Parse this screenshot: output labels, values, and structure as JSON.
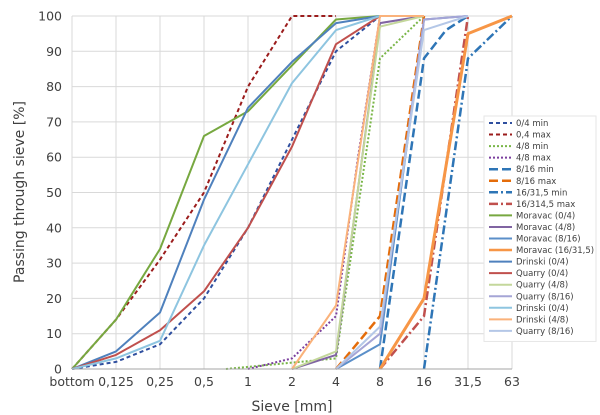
{
  "chart_data": {
    "type": "line",
    "xlabel": "Sieve [mm]",
    "ylabel": "Passing through sieve [%]",
    "categories": [
      "bottom",
      "0,125",
      "0,25",
      "0,5",
      "1",
      "2",
      "4",
      "8",
      "16",
      "31,5",
      "63"
    ],
    "ylim": [
      0,
      100
    ],
    "yticks": [
      0,
      10,
      20,
      30,
      40,
      50,
      60,
      70,
      80,
      90,
      100
    ],
    "grid": true,
    "legend_position": "right",
    "series": [
      {
        "name": "0/4 min",
        "color": "#2f4f9f",
        "dash": "4,3",
        "width": 2,
        "x": [
          0,
          1,
          2,
          3,
          4,
          5,
          6,
          7
        ],
        "values": [
          0,
          2,
          7,
          20,
          40,
          65,
          90,
          100
        ]
      },
      {
        "name": "0,4 max",
        "color": "#9b1c1c",
        "dash": "4,3",
        "width": 2,
        "x": [
          0,
          1,
          2,
          3,
          4,
          5,
          6
        ],
        "values": [
          0,
          14,
          31,
          50,
          80,
          100,
          100
        ]
      },
      {
        "name": "4/8 min",
        "color": "#7ab648",
        "dash": "2,2",
        "width": 2,
        "x": [
          3.5,
          6,
          7,
          8
        ],
        "values": [
          0,
          3,
          88,
          100
        ]
      },
      {
        "name": "4/8 max",
        "color": "#7b3f9e",
        "dash": "2,2",
        "width": 2,
        "x": [
          4,
          5,
          6,
          6.5,
          7,
          8
        ],
        "values": [
          0,
          3,
          15,
          60,
          100,
          100
        ]
      },
      {
        "name": "8/16 min",
        "color": "#2e75b6",
        "dash": "9,4",
        "width": 2.5,
        "x": [
          7,
          8,
          8.5,
          9
        ],
        "values": [
          0,
          88,
          96,
          100
        ]
      },
      {
        "name": "8/16 max",
        "color": "#e46c0a",
        "dash": "9,4",
        "width": 2.5,
        "x": [
          6,
          7,
          8
        ],
        "values": [
          0,
          15,
          100
        ]
      },
      {
        "name": "16/31,5 min",
        "color": "#2e75b6",
        "dash": "9,3,2,3",
        "width": 2.5,
        "x": [
          8,
          9,
          10
        ],
        "values": [
          0,
          88,
          100
        ]
      },
      {
        "name": "16/314,5 max",
        "color": "#c0504d",
        "dash": "9,3,2,3",
        "width": 2.5,
        "x": [
          7,
          8,
          9
        ],
        "values": [
          0,
          15,
          100
        ]
      },
      {
        "name": "Moravac (0/4)",
        "color": "#77a840",
        "dash": "",
        "width": 2,
        "x": [
          0,
          1,
          2,
          3,
          4,
          5,
          6,
          7
        ],
        "values": [
          0,
          14,
          34,
          66,
          73,
          86,
          99,
          100
        ]
      },
      {
        "name": "Moravac (4/8)",
        "color": "#8064a2",
        "dash": "",
        "width": 2,
        "x": [
          5,
          6,
          7,
          8
        ],
        "values": [
          0,
          4,
          98,
          100
        ]
      },
      {
        "name": "Moravac (8/16)",
        "color": "#5b8fc9",
        "dash": "",
        "width": 2,
        "x": [
          6,
          7,
          8,
          9
        ],
        "values": [
          0,
          7,
          99,
          100
        ]
      },
      {
        "name": "Moravac (16/31,5)",
        "color": "#f79646",
        "dash": "",
        "width": 3,
        "x": [
          7,
          8,
          9,
          10
        ],
        "values": [
          0,
          20,
          95,
          100
        ]
      },
      {
        "name": "Drinski (0/4)",
        "color": "#4f81bd",
        "dash": "",
        "width": 2,
        "x": [
          0,
          1,
          2,
          3,
          4,
          5,
          6,
          7
        ],
        "values": [
          0,
          5,
          16,
          48,
          74,
          87,
          98,
          100
        ]
      },
      {
        "name": "Quarry (0/4)",
        "color": "#c0504d",
        "dash": "",
        "width": 2,
        "x": [
          0,
          1,
          2,
          3,
          4,
          5,
          6,
          7
        ],
        "values": [
          0,
          4,
          11,
          22,
          40,
          63,
          92,
          100
        ]
      },
      {
        "name": "Quarry (4/8)",
        "color": "#c4d79b",
        "dash": "",
        "width": 2,
        "x": [
          5,
          6,
          7,
          8
        ],
        "values": [
          0,
          5,
          97,
          100
        ]
      },
      {
        "name": "Quarry (8/16)",
        "color": "#a5a5d6",
        "dash": "",
        "width": 2,
        "x": [
          6,
          7,
          8,
          9
        ],
        "values": [
          0,
          10,
          99,
          100
        ]
      },
      {
        "name": "Drinski (0/4)",
        "color": "#8ec5e0",
        "dash": "",
        "width": 2,
        "x": [
          0,
          1,
          2,
          3,
          4,
          5,
          6,
          7
        ],
        "values": [
          0,
          3,
          8,
          35,
          58,
          81,
          96,
          100
        ]
      },
      {
        "name": "Drinski (4/8)",
        "color": "#fab27b",
        "dash": "",
        "width": 2,
        "x": [
          5,
          6,
          7,
          8
        ],
        "values": [
          0,
          18,
          100,
          100
        ]
      },
      {
        "name": "Quarry (8/16)",
        "color": "#b4c7e7",
        "dash": "",
        "width": 2,
        "x": [
          6,
          7,
          8,
          9
        ],
        "values": [
          0,
          12,
          96,
          100
        ]
      }
    ]
  }
}
